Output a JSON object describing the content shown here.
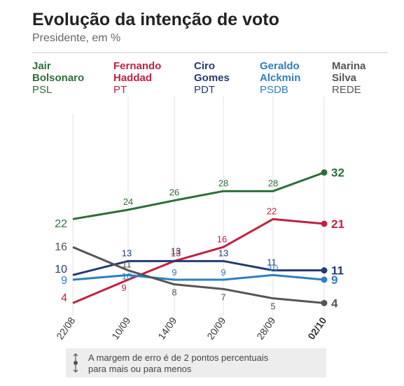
{
  "header": {
    "title": "Evolução da intenção de voto",
    "subtitle": "Presidente, em %"
  },
  "legend": [
    {
      "name": "Jair\nBolsonaro",
      "party": "PSL",
      "color": "#2d6e3a"
    },
    {
      "name": "Fernando\nHaddad",
      "party": "PT",
      "color": "#c0213f"
    },
    {
      "name": "Ciro\nGomes",
      "party": "PDT",
      "color": "#243b6e"
    },
    {
      "name": "Geraldo\nAlckmin",
      "party": "PSDB",
      "color": "#2e7fc1"
    },
    {
      "name": "Marina\nSilva",
      "party": "REDE",
      "color": "#555555"
    }
  ],
  "chart_data": {
    "type": "line",
    "categories": [
      "22/08",
      "10/09",
      "14/09",
      "20/09",
      "28/09",
      "02/10"
    ],
    "ylim": [
      0,
      36
    ],
    "grid": "vertical",
    "series": [
      {
        "name": "Jair Bolsonaro",
        "color": "#2d6e3a",
        "values": [
          22,
          24,
          26,
          28,
          28,
          32
        ]
      },
      {
        "name": "Fernando Haddad",
        "color": "#c0213f",
        "values": [
          4,
          9,
          13,
          16,
          22,
          21
        ]
      },
      {
        "name": "Ciro Gomes",
        "color": "#243b6e",
        "values": [
          10,
          13,
          13,
          13,
          11,
          11
        ]
      },
      {
        "name": "Geraldo Alckmin",
        "color": "#2e7fc1",
        "values": [
          9,
          10,
          9,
          9,
          10,
          9
        ]
      },
      {
        "name": "Marina Silva",
        "color": "#555555",
        "values": [
          16,
          11,
          8,
          7,
          5,
          4
        ]
      }
    ]
  },
  "note": {
    "text": "A margem de erro é de 2 pontos percentuais\npara mais ou para menos"
  }
}
